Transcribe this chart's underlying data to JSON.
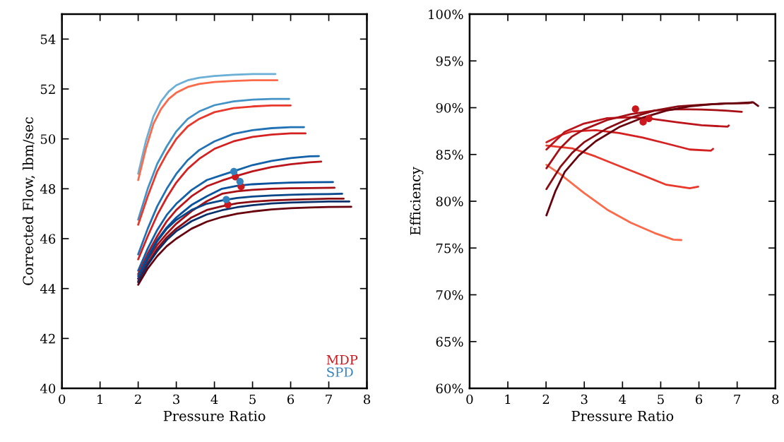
{
  "chart_data": [
    {
      "type": "line",
      "xlabel": "Pressure Ratio",
      "ylabel": "Corrected Flow, lbm/sec",
      "xlim": [
        0,
        8
      ],
      "ylim": [
        40,
        55
      ],
      "xticks": [
        0,
        1,
        2,
        3,
        4,
        5,
        6,
        7,
        8
      ],
      "yticks": [
        40,
        42,
        44,
        46,
        48,
        50,
        52,
        54
      ],
      "legend": "bottom right",
      "series": [
        {
          "color": "#6baed6",
          "x": [
            2,
            2.2,
            2.4,
            2.6,
            2.8,
            3.0,
            3.3,
            3.6,
            4.0,
            4.5,
            5.0,
            5.6
          ],
          "values": [
            48.6,
            49.9,
            50.9,
            51.5,
            51.9,
            52.15,
            52.35,
            52.45,
            52.52,
            52.57,
            52.6,
            52.6
          ]
        },
        {
          "color": "#fb6a4a",
          "x": [
            2,
            2.2,
            2.4,
            2.6,
            2.8,
            3.0,
            3.3,
            3.6,
            4.0,
            4.5,
            5.0,
            5.65
          ],
          "values": [
            48.35,
            49.6,
            50.6,
            51.2,
            51.6,
            51.85,
            52.08,
            52.2,
            52.28,
            52.32,
            52.35,
            52.35
          ]
        },
        {
          "color": "#4292c6",
          "x": [
            2,
            2.25,
            2.5,
            2.75,
            3.0,
            3.3,
            3.6,
            4.0,
            4.5,
            5.0,
            5.5,
            5.96
          ],
          "values": [
            46.76,
            48.0,
            49.0,
            49.7,
            50.3,
            50.8,
            51.1,
            51.35,
            51.5,
            51.57,
            51.6,
            51.6
          ]
        },
        {
          "color": "#e9382c",
          "x": [
            2,
            2.25,
            2.5,
            2.75,
            3.0,
            3.3,
            3.6,
            4.0,
            4.5,
            5.0,
            5.5,
            6.0
          ],
          "values": [
            46.56,
            47.7,
            48.7,
            49.4,
            50.0,
            50.5,
            50.8,
            51.07,
            51.23,
            51.3,
            51.34,
            51.34
          ]
        },
        {
          "color": "#2171b5",
          "x": [
            2,
            2.25,
            2.5,
            2.75,
            3.0,
            3.3,
            3.6,
            4.0,
            4.5,
            5.0,
            5.5,
            6.0,
            6.35
          ],
          "values": [
            45.37,
            46.4,
            47.3,
            48.0,
            48.6,
            49.15,
            49.55,
            49.9,
            50.2,
            50.35,
            50.43,
            50.47,
            50.47
          ]
        },
        {
          "color": "#d42020",
          "x": [
            2,
            2.25,
            2.5,
            2.75,
            3.0,
            3.3,
            3.6,
            4.0,
            4.5,
            5.0,
            5.5,
            6.0,
            6.39
          ],
          "values": [
            45.17,
            46.1,
            46.95,
            47.65,
            48.25,
            48.8,
            49.2,
            49.6,
            49.9,
            50.08,
            50.17,
            50.22,
            50.22
          ]
        },
        {
          "color": "#1361a9",
          "x": [
            2,
            2.25,
            2.5,
            2.75,
            3.0,
            3.4,
            3.8,
            4.2,
            4.5,
            5.0,
            5.5,
            6.0,
            6.5,
            6.74
          ],
          "values": [
            44.72,
            45.6,
            46.35,
            46.95,
            47.4,
            47.95,
            48.35,
            48.55,
            48.7,
            48.95,
            49.12,
            49.23,
            49.3,
            49.31
          ]
        },
        {
          "color": "#bb141a",
          "x": [
            2,
            2.25,
            2.5,
            2.75,
            3.0,
            3.4,
            3.8,
            4.2,
            4.55,
            5.0,
            5.5,
            6.0,
            6.5,
            6.8
          ],
          "values": [
            44.58,
            45.4,
            46.1,
            46.7,
            47.15,
            47.7,
            48.1,
            48.33,
            48.5,
            48.7,
            48.87,
            48.98,
            49.06,
            49.09
          ]
        },
        {
          "color": "#08519c",
          "x": [
            2,
            2.25,
            2.5,
            2.75,
            3.0,
            3.4,
            3.8,
            4.2,
            4.6,
            5.0,
            5.5,
            6.0,
            6.5,
            7.11
          ],
          "values": [
            44.5,
            45.3,
            45.95,
            46.45,
            46.85,
            47.35,
            47.7,
            48.0,
            48.12,
            48.18,
            48.22,
            48.25,
            48.26,
            48.27
          ]
        },
        {
          "color": "#a50f15",
          "x": [
            2,
            2.25,
            2.5,
            2.75,
            3.0,
            3.4,
            3.8,
            4.2,
            4.6,
            5.0,
            5.5,
            6.0,
            6.5,
            7.15
          ],
          "values": [
            44.4,
            45.15,
            45.75,
            46.2,
            46.6,
            47.1,
            47.5,
            47.8,
            47.9,
            47.96,
            48.0,
            48.02,
            48.03,
            48.04
          ]
        },
        {
          "color": "#08468a",
          "x": [
            2,
            2.25,
            2.5,
            2.75,
            3.0,
            3.4,
            3.8,
            4.2,
            4.6,
            5.0,
            5.5,
            6.0,
            6.5,
            7.0,
            7.35
          ],
          "values": [
            44.4,
            45.2,
            45.9,
            46.4,
            46.75,
            47.15,
            47.4,
            47.53,
            47.63,
            47.69,
            47.73,
            47.76,
            47.78,
            47.79,
            47.8
          ]
        },
        {
          "color": "#8a0b12",
          "x": [
            2,
            2.25,
            2.5,
            2.75,
            3.0,
            3.4,
            3.8,
            4.2,
            4.6,
            5.0,
            5.5,
            6.0,
            6.5,
            7.0,
            7.39
          ],
          "values": [
            44.3,
            45.0,
            45.6,
            46.05,
            46.4,
            46.85,
            47.15,
            47.3,
            47.42,
            47.48,
            47.53,
            47.56,
            47.58,
            47.6,
            47.6
          ]
        },
        {
          "color": "#08306b",
          "x": [
            2,
            2.25,
            2.5,
            2.75,
            3.0,
            3.4,
            3.8,
            4.2,
            4.6,
            5.0,
            5.5,
            6.0,
            6.5,
            7.0,
            7.54
          ],
          "values": [
            44.25,
            44.95,
            45.5,
            45.95,
            46.3,
            46.7,
            46.97,
            47.14,
            47.26,
            47.34,
            47.41,
            47.45,
            47.47,
            47.49,
            47.49
          ]
        },
        {
          "color": "#67000d",
          "x": [
            2,
            2.25,
            2.5,
            2.75,
            3.0,
            3.4,
            3.8,
            4.2,
            4.6,
            5.0,
            5.5,
            6.0,
            6.5,
            7.0,
            7.59
          ],
          "values": [
            44.15,
            44.8,
            45.3,
            45.7,
            46.0,
            46.4,
            46.68,
            46.87,
            47.0,
            47.09,
            47.17,
            47.22,
            47.25,
            47.27,
            47.28
          ]
        },
        {
          "type": "scatter",
          "name": "MDP",
          "color": "#cb181d",
          "x": [
            4.55,
            4.7,
            4.35
          ],
          "values": [
            48.48,
            48.09,
            47.36
          ]
        },
        {
          "type": "scatter",
          "name": "SPD",
          "color": "#3182bd",
          "x": [
            4.51,
            4.67,
            4.31
          ],
          "values": [
            48.69,
            48.29,
            47.57
          ]
        }
      ]
    },
    {
      "type": "line",
      "xlabel": "Pressure Ratio",
      "ylabel": "Efficiency",
      "xlim": [
        0,
        8
      ],
      "ylim": [
        60,
        100
      ],
      "xticks": [
        0,
        1,
        2,
        3,
        4,
        5,
        6,
        7,
        8
      ],
      "yticks": [
        {
          "value": 60,
          "label": "60%"
        },
        {
          "value": 65,
          "label": "65%"
        },
        {
          "value": 70,
          "label": "70%"
        },
        {
          "value": 75,
          "label": "75%"
        },
        {
          "value": 80,
          "label": "80%"
        },
        {
          "value": 85,
          "label": "85%"
        },
        {
          "value": 90,
          "label": "90%"
        },
        {
          "value": 95,
          "label": "95%"
        },
        {
          "value": 100,
          "label": "100%"
        }
      ],
      "series": [
        {
          "color": "#fb6a4a",
          "x": [
            2.01,
            2.37,
            2.99,
            3.6,
            4.22,
            4.84,
            5.33,
            5.54
          ],
          "values": [
            83.9,
            82.9,
            80.9,
            79.1,
            77.7,
            76.6,
            75.9,
            75.85
          ]
        },
        {
          "color": "#e9382c",
          "x": [
            2.01,
            2.68,
            3.3,
            3.91,
            4.53,
            5.15,
            5.76,
            5.98
          ],
          "values": [
            85.96,
            85.66,
            84.78,
            83.77,
            82.77,
            81.76,
            81.38,
            81.56
          ]
        },
        {
          "color": "#d42020",
          "x": [
            2.01,
            2.37,
            2.68,
            3.3,
            3.91,
            4.53,
            5.15,
            5.76,
            6.31,
            6.37
          ],
          "values": [
            86.3,
            87.04,
            87.47,
            87.6,
            87.3,
            86.8,
            86.17,
            85.53,
            85.4,
            85.6
          ]
        },
        {
          "color": "#bb141a",
          "x": [
            2.01,
            2.49,
            2.99,
            3.6,
            4.22,
            4.71,
            5.46,
            6.07,
            6.75,
            6.78
          ],
          "values": [
            85.53,
            87.42,
            88.3,
            88.88,
            88.98,
            88.85,
            88.43,
            88.12,
            87.97,
            88.1
          ]
        },
        {
          "color": "#a50f15",
          "x": [
            2.01,
            2.37,
            2.68,
            2.99,
            3.6,
            4.22,
            4.84,
            5.46,
            6.07,
            6.69,
            7.12
          ],
          "values": [
            83.52,
            85.66,
            86.92,
            87.67,
            88.68,
            89.31,
            89.69,
            89.84,
            89.81,
            89.69,
            89.56
          ]
        },
        {
          "color": "#8a0b12",
          "x": [
            2.01,
            2.37,
            2.68,
            2.99,
            3.6,
            4.22,
            4.84,
            5.46,
            6.07,
            6.69,
            7.3,
            7.39
          ],
          "values": [
            81.3,
            83.65,
            85.16,
            86.29,
            87.8,
            88.93,
            89.69,
            90.14,
            90.31,
            90.44,
            90.49,
            90.57
          ]
        },
        {
          "color": "#67000d",
          "x": [
            2.01,
            2.25,
            2.49,
            2.86,
            3.3,
            3.91,
            4.53,
            5.15,
            5.76,
            6.38,
            6.99,
            7.42,
            7.55
          ],
          "values": [
            78.49,
            81.13,
            83.14,
            84.9,
            86.42,
            87.92,
            88.93,
            89.69,
            90.14,
            90.39,
            90.49,
            90.57,
            90.19
          ]
        },
        {
          "type": "scatter",
          "color": "#cb181d",
          "x": [
            4.34,
            4.69,
            4.54
          ],
          "values": [
            89.86,
            88.85,
            88.48
          ]
        }
      ]
    }
  ]
}
